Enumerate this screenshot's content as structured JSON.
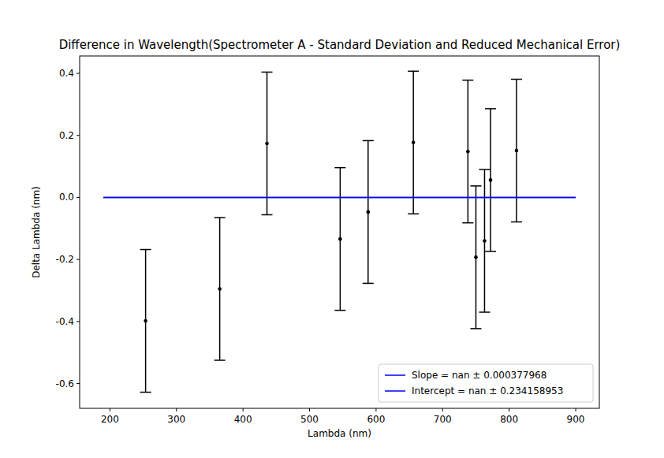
{
  "chart_data": {
    "type": "scatter",
    "title": "Difference in Wavelength(Spectrometer A - Standard Deviation and Reduced Mechanical Error)",
    "x_label": "Lambda (nm)",
    "y_label": "Delta Lambda (nm)",
    "xlim": [
      154.5,
      935.5
    ],
    "ylim": [
      -0.68,
      0.456
    ],
    "xticks": [
      200,
      300,
      400,
      500,
      600,
      700,
      800,
      900
    ],
    "yticks": [
      -0.6,
      -0.4,
      -0.2,
      {
        "value": 0,
        "label": "0.0"
      },
      0.2,
      0.4
    ],
    "grid": false,
    "legend": "lower right",
    "series": [
      {
        "type": "scatter",
        "color": "#000000",
        "marker": "point",
        "x": [
          253.6,
          365,
          436,
          546,
          588,
          656,
          738,
          750,
          763,
          772,
          811
        ],
        "values": [
          -0.398,
          -0.295,
          0.174,
          -0.134,
          -0.047,
          0.177,
          0.148,
          -0.193,
          -0.14,
          0.056,
          0.151
        ],
        "errors": [
          0.23,
          0.23,
          0.23,
          0.23,
          0.23,
          0.23,
          0.23,
          0.23,
          0.23,
          0.23,
          0.23
        ]
      },
      {
        "type": "line",
        "name": "Slope = nan ± 0.000377968",
        "color": "#0000ff",
        "line_style": "solid",
        "x": [
          190,
          900
        ],
        "values": [
          0,
          0
        ]
      },
      {
        "type": "line",
        "name": "Intercept = nan ± 0.234158953",
        "color": "#0000ff",
        "line_style": "solid",
        "x": [
          190,
          900
        ],
        "values": [
          0,
          0
        ]
      }
    ]
  }
}
